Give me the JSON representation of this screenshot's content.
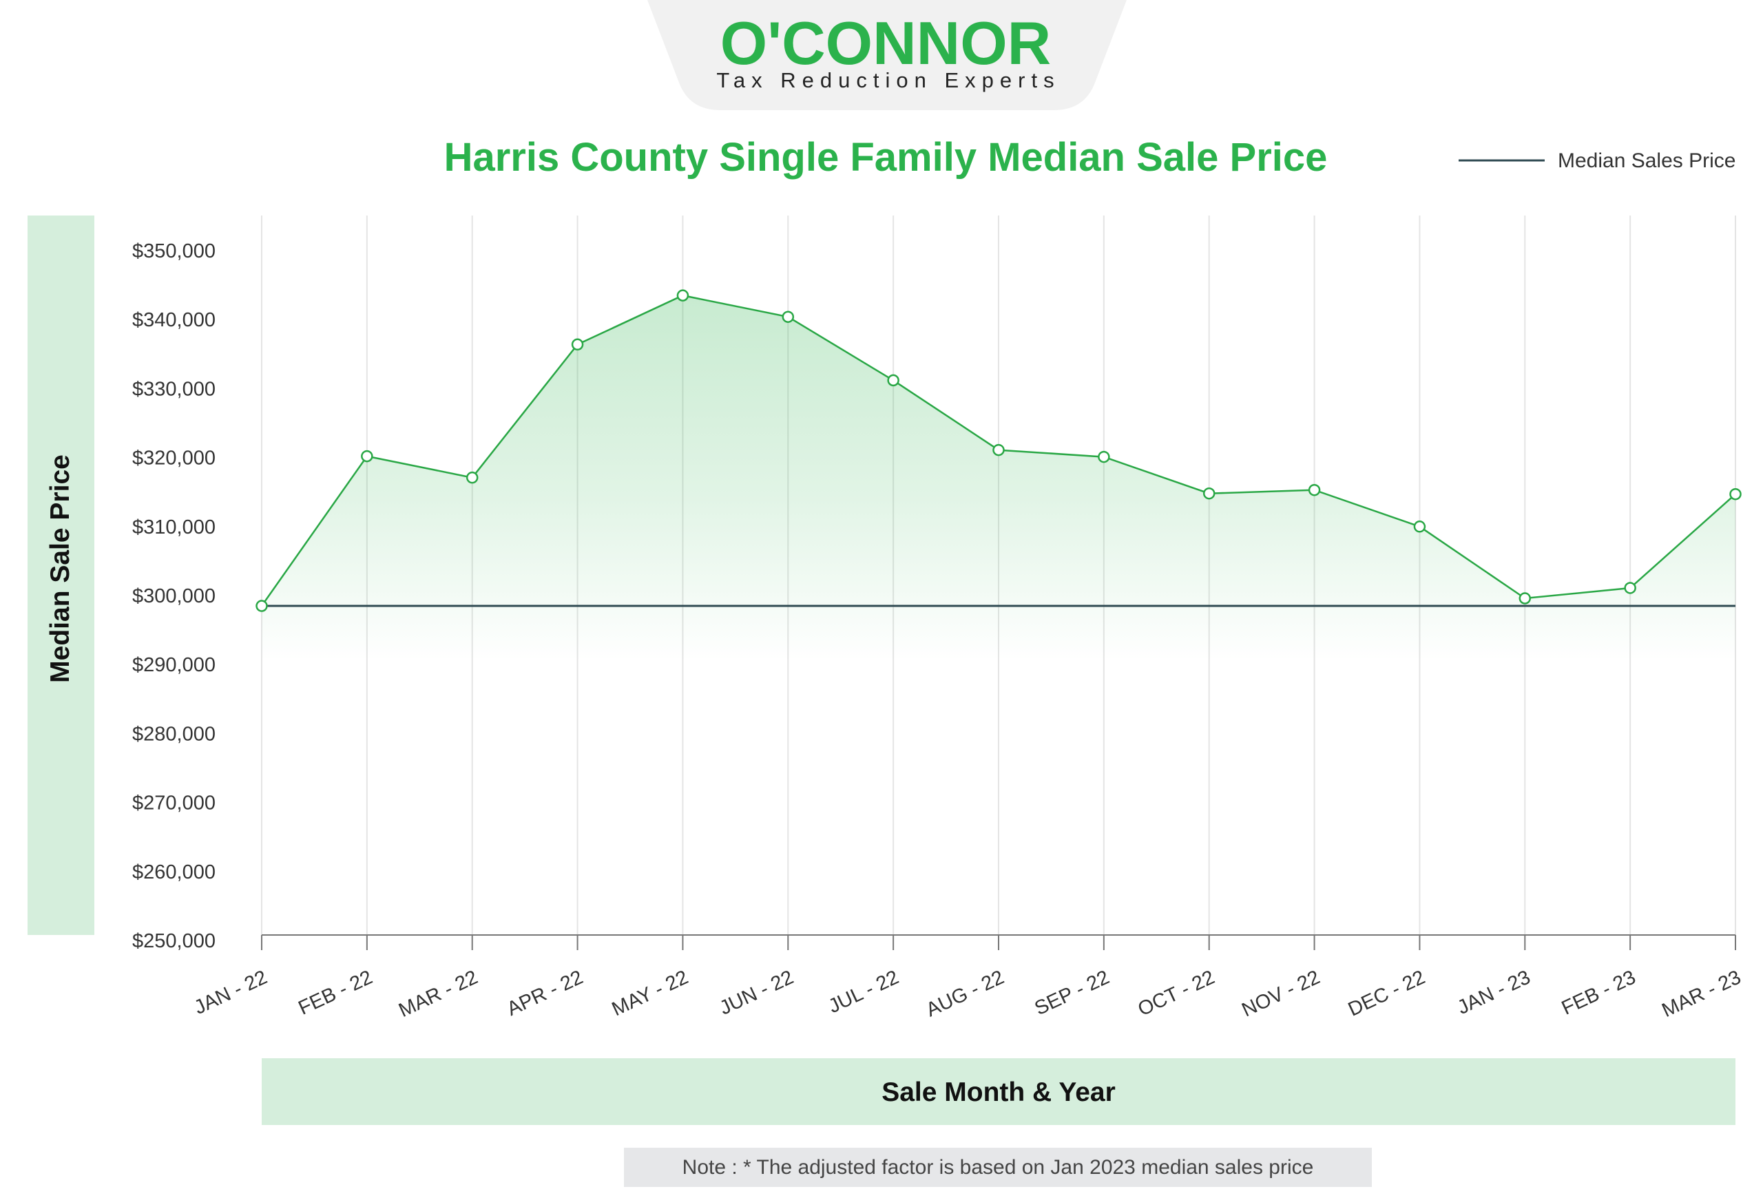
{
  "colors": {
    "brand_green": "#2bb24c",
    "line_green": "#29a745",
    "panel_green": "#d5eedc",
    "baseline": "#2f4a52",
    "note_bg": "#e6e7e9",
    "logo_bg": "#f1f1f1"
  },
  "logo": {
    "name": "O'CONNOR",
    "tagline": "Tax Reduction Experts"
  },
  "note": "Note : * The adjusted factor is based on Jan 2023 median sales price",
  "chart_data": {
    "type": "area",
    "title": "Harris County Single Family Median Sale Price",
    "xlabel": "Sale Month & Year",
    "ylabel": "Median Sale Price",
    "categories": [
      "JAN - 22",
      "FEB - 22",
      "MAR - 22",
      "APR - 22",
      "MAY - 22",
      "JUN - 22",
      "JUL - 22",
      "AUG - 22",
      "SEP - 22",
      "OCT - 22",
      "NOV - 22",
      "DEC - 22",
      "JAN - 23",
      "FEB - 23",
      "MAR - 23"
    ],
    "series": [
      {
        "name": "",
        "values": [
          298500,
          320200,
          317100,
          336400,
          343500,
          340400,
          331200,
          321100,
          320100,
          314800,
          315300,
          310000,
          299600,
          301100,
          314700
        ]
      }
    ],
    "reference_line": {
      "name": "Median Sales Price",
      "value": 298500
    },
    "ylim": [
      250000,
      350000
    ],
    "yticks": [
      350000,
      340000,
      330000,
      320000,
      310000,
      300000,
      290000,
      280000,
      270000,
      260000,
      250000
    ],
    "ytick_labels": [
      "$350,000",
      "$340,000",
      "$330,000",
      "$320,000",
      "$310,000",
      "$300,000",
      "$290,000",
      "$280,000",
      "$270,000",
      "$260,000",
      "$250,000"
    ],
    "grid": "vertical",
    "legend_position": "top-right"
  }
}
